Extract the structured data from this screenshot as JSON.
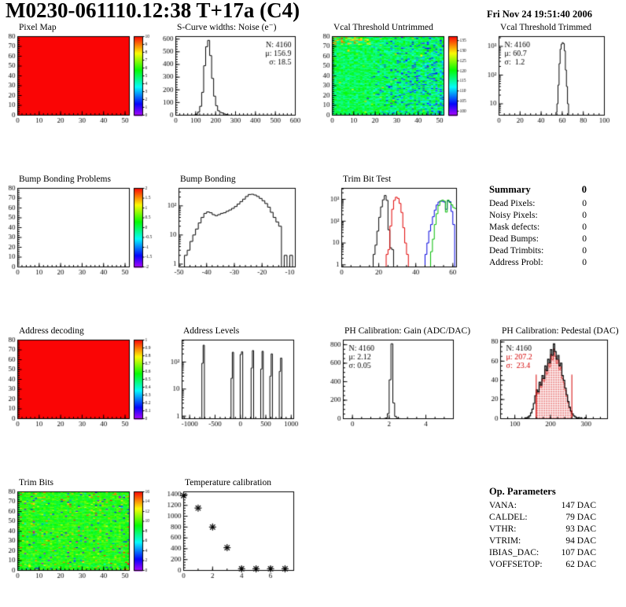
{
  "header": {
    "title": "M0230-061110.12:38 T+17a (C4)",
    "date": "Fri Nov 24 19:51:40 2006"
  },
  "summary": {
    "title": "Summary",
    "value": "0",
    "rows": [
      [
        "Dead Pixels:",
        "0"
      ],
      [
        "Noisy Pixels:",
        "0"
      ],
      [
        "Mask defects:",
        "0"
      ],
      [
        "Dead Bumps:",
        "0"
      ],
      [
        "Dead Trimbits:",
        "0"
      ],
      [
        "Address Probl:",
        "0"
      ]
    ]
  },
  "op_params": {
    "title": "Op. Parameters",
    "rows": [
      [
        "VANA:",
        "147 DAC"
      ],
      [
        "CALDEL:",
        "79 DAC"
      ],
      [
        "VTHR:",
        "93 DAC"
      ],
      [
        "VTRIM:",
        "94 DAC"
      ],
      [
        "IBIAS_DAC:",
        "107 DAC"
      ],
      [
        "VOFFSETOP:",
        "62 DAC"
      ]
    ]
  },
  "colors": {
    "hist_black": "#000000",
    "hist_red": "#e00000",
    "hist_blue": "#0000dd",
    "hist_green": "#00bb00",
    "solid_red": "#fa0e00",
    "stat_red": "#d40000"
  },
  "chart_data": [
    {
      "id": "pixel_map",
      "type": "heatmap",
      "title": "Pixel Map",
      "ml": 16,
      "fw": 142,
      "x": {
        "min": 0,
        "max": 52,
        "major": 10,
        "minor": 2
      },
      "y": {
        "min": 0,
        "max": 80,
        "major": 10,
        "minor": 2
      },
      "map": {
        "mode": "solid",
        "value": 10
      },
      "z": {
        "min": 0,
        "max": 10
      },
      "colorbar": {
        "labels": [
          0,
          1,
          2,
          3,
          4,
          5,
          6,
          7,
          8,
          9,
          10
        ]
      }
    },
    {
      "id": "scurve",
      "type": "hist",
      "title": "S-Curve widths: Noise (e⁻)",
      "ml": 20,
      "fw": 152,
      "x": {
        "min": 0,
        "max": 600,
        "major": 100,
        "minor": 20
      },
      "y": {
        "min": 0,
        "max": 620,
        "major": 100,
        "minor": 20
      },
      "bins": {
        "x0": 90,
        "dx": 10,
        "values": [
          2,
          8,
          25,
          70,
          180,
          390,
          540,
          590,
          470,
          290,
          150,
          75,
          35,
          22,
          18,
          10,
          5,
          2
        ]
      },
      "stats": {
        "pos": "tr",
        "lines": [
          {
            "t": "N: 4160",
            "c": "#000000"
          },
          {
            "t": "μ: 156.9",
            "c": "#000000"
          },
          {
            "t": "σ: 18.5",
            "c": "#000000"
          }
        ]
      }
    },
    {
      "id": "vcal_untrimmed",
      "type": "heatmap",
      "title": "Vcal Threshold Untrimmed",
      "ml": 16,
      "fw": 142,
      "x": {
        "min": 0,
        "max": 52,
        "major": 10,
        "minor": 2
      },
      "y": {
        "min": 0,
        "max": 80,
        "major": 10,
        "minor": 2
      },
      "map": {
        "mode": "noise",
        "pattern": "vcal",
        "seed": 77
      },
      "z": {
        "min": 98,
        "max": 137
      },
      "colorbar": {
        "labels": [
          100,
          105,
          110,
          115,
          120,
          125,
          130,
          135
        ]
      }
    },
    {
      "id": "vcal_trimmed",
      "type": "hist",
      "title": "Vcal Threshold Trimmed",
      "ml": 24,
      "fw": 134,
      "x": {
        "min": 0,
        "max": 100,
        "major": 20,
        "minor": 5
      },
      "y": {
        "min": 4,
        "max": 2200,
        "log": true
      },
      "bins": {
        "x0": 53,
        "dx": 1,
        "values": [
          2,
          5,
          10,
          45,
          250,
          800,
          1200,
          1350,
          1250,
          700,
          150,
          40,
          10,
          4,
          2
        ]
      },
      "stats": {
        "pos": "tl",
        "lines": [
          {
            "t": "N: 4160",
            "c": "#000000"
          },
          {
            "t": "μ: 60.7",
            "c": "#000000"
          },
          {
            "t": "σ:  1.2",
            "c": "#000000"
          }
        ]
      }
    },
    {
      "id": "bump_problems",
      "type": "heatmap",
      "title": "Bump Bonding Problems",
      "ml": 16,
      "fw": 142,
      "x": {
        "min": 0,
        "max": 52,
        "major": 10,
        "minor": 2
      },
      "y": {
        "min": 0,
        "max": 80,
        "major": 10,
        "minor": 2
      },
      "map": {
        "mode": "empty"
      },
      "z": {
        "min": -2,
        "max": 2
      },
      "colorbar": {
        "labels": [
          -2,
          -1.5,
          -1,
          -0.5,
          0,
          0.5,
          1,
          1.5,
          2
        ]
      }
    },
    {
      "id": "bump_bonding",
      "type": "hist",
      "title": "Bump Bonding",
      "ml": 24,
      "fw": 148,
      "x": {
        "min": -50,
        "max": -8,
        "major": 10,
        "minor": 2
      },
      "y": {
        "min": 0.8,
        "max": 400,
        "log": true
      },
      "bins": {
        "x0": -48,
        "dx": 1,
        "values": [
          2,
          3,
          6,
          10,
          16,
          26,
          40,
          55,
          62,
          58,
          50,
          46,
          50,
          55,
          58,
          65,
          72,
          82,
          95,
          115,
          140,
          170,
          210,
          245,
          250,
          235,
          210,
          180,
          150,
          120,
          90,
          60,
          40,
          28,
          20,
          0,
          2,
          0,
          2,
          0
        ]
      }
    },
    {
      "id": "trimbit_test",
      "type": "mhist",
      "title": "Trim Bit Test",
      "ml": 28,
      "fw": 146,
      "x": {
        "min": 0,
        "max": 62,
        "major": 20,
        "minor": 5
      },
      "y": {
        "min": 0.8,
        "max": 3200,
        "log": true
      },
      "series": [
        {
          "color": "#000000",
          "x0": 17,
          "dx": 1,
          "values": [
            3,
            8,
            35,
            150,
            450,
            950,
            1500,
            900,
            40,
            6,
            5
          ]
        },
        {
          "color": "#e00000",
          "x0": 24,
          "dx": 1,
          "values": [
            3,
            5,
            60,
            350,
            900,
            1250,
            1100,
            650,
            250,
            50,
            10,
            3
          ]
        },
        {
          "color": "#0000dd",
          "x0": 45,
          "dx": 1,
          "values": [
            3,
            10,
            35,
            70,
            160,
            320,
            550,
            750,
            850,
            800,
            750,
            350,
            850,
            780,
            280,
            70
          ]
        },
        {
          "color": "#00bb00",
          "x0": 48,
          "dx": 1,
          "values": [
            4,
            15,
            70,
            220,
            520,
            820,
            920,
            830,
            260,
            920,
            720,
            560,
            420,
            380
          ]
        }
      ]
    },
    {
      "id": "address_decoding",
      "type": "heatmap",
      "title": "Address decoding",
      "ml": 16,
      "fw": 142,
      "x": {
        "min": 0,
        "max": 52,
        "major": 10,
        "minor": 2
      },
      "y": {
        "min": 0,
        "max": 80,
        "major": 10,
        "minor": 2
      },
      "map": {
        "mode": "solid",
        "value": 1
      },
      "z": {
        "min": 0,
        "max": 1
      },
      "colorbar": {
        "labels": [
          0,
          0.1,
          0.2,
          0.3,
          0.4,
          0.5,
          0.6,
          0.7,
          0.8,
          0.9,
          1
        ]
      }
    },
    {
      "id": "address_levels",
      "type": "spikes",
      "title": "Address Levels",
      "ml": 28,
      "fw": 142,
      "x": {
        "min": -1150,
        "max": 1050,
        "major": 500,
        "minor": 100
      },
      "y": {
        "min": 0.8,
        "max": 650,
        "log": true
      },
      "bw": 25,
      "spikes": [
        {
          "x": -735,
          "side": 90,
          "main": 420
        },
        {
          "x": -160,
          "side": 25,
          "main": 230
        },
        {
          "x": 20,
          "side": 190,
          "main": 240
        },
        {
          "x": 235,
          "side": 60,
          "main": 265
        },
        {
          "x": 425,
          "side": 55,
          "main": 250
        },
        {
          "x": 605,
          "side": 30,
          "main": 200
        },
        {
          "x": 790,
          "side": 45,
          "main": 140
        }
      ]
    },
    {
      "id": "ph_gain",
      "type": "hist",
      "title": "PH Calibration: Gain (ADC/DAC)",
      "ml": 30,
      "fw": 140,
      "x": {
        "min": -0.5,
        "max": 5.5,
        "major": 2,
        "minor": 0.5
      },
      "y": {
        "min": 0,
        "max": 850,
        "major": 200,
        "minor": 50
      },
      "bins": {
        "x0": 1.7,
        "dx": 0.1,
        "values": [
          2,
          8,
          55,
          420,
          810,
          170,
          25,
          5,
          2
        ]
      },
      "stats": {
        "pos": "tl",
        "lines": [
          {
            "t": "N: 4160",
            "c": "#000000"
          },
          {
            "t": "μ: 2.12",
            "c": "#000000"
          },
          {
            "t": "σ: 0.05",
            "c": "#000000"
          }
        ]
      }
    },
    {
      "id": "ph_pedestal",
      "type": "hist_filled",
      "title": "PH Calibration: Pedestal (DAC)",
      "ml": 26,
      "fw": 136,
      "x": {
        "min": 60,
        "max": 360,
        "major": 100,
        "minor": 20
      },
      "y": {
        "min": 0,
        "max": 82,
        "major": 20,
        "minor": 5
      },
      "bins": {
        "x0": 128,
        "dx": 4,
        "values": [
          1,
          1,
          2,
          3,
          6,
          10,
          16,
          24,
          30,
          28,
          38,
          35,
          45,
          42,
          55,
          50,
          62,
          58,
          72,
          66,
          78,
          70,
          62,
          66,
          55,
          58,
          45,
          40,
          32,
          25,
          18,
          12,
          8,
          5,
          3,
          2,
          1,
          1,
          0,
          1,
          0,
          0,
          1,
          0,
          0
        ]
      },
      "fill": {
        "color": "#d40000",
        "cuts": [
          160,
          260
        ],
        "frac": 0.93,
        "cutH": 46
      },
      "stats": {
        "pos": "tl",
        "lines": [
          {
            "t": "N: 4160",
            "c": "#000000"
          },
          {
            "t": "μ: 207.2",
            "c": "#d40000"
          },
          {
            "t": "σ:  23.4",
            "c": "#d40000"
          }
        ]
      }
    },
    {
      "id": "trim_bits",
      "type": "heatmap",
      "title": "Trim Bits",
      "ml": 16,
      "fw": 142,
      "x": {
        "min": 0,
        "max": 52,
        "major": 10,
        "minor": 2
      },
      "y": {
        "min": 0,
        "max": 80,
        "major": 10,
        "minor": 2
      },
      "map": {
        "mode": "noise",
        "pattern": "trim",
        "seed": 1234
      },
      "z": {
        "min": 0,
        "max": 16
      },
      "colorbar": {
        "labels": [
          0,
          2,
          4,
          6,
          8,
          10,
          12,
          14,
          16
        ]
      }
    },
    {
      "id": "temp_cal",
      "type": "scatter",
      "title": "Temperature calibration",
      "ml": 30,
      "fw": 140,
      "x": {
        "min": 0,
        "max": 7.6,
        "major": 2,
        "minor": 1
      },
      "y": {
        "min": 0,
        "max": 1450,
        "major": 200,
        "minor": 50
      },
      "points": [
        [
          0,
          1380
        ],
        [
          1,
          1150
        ],
        [
          2,
          800
        ],
        [
          3,
          420
        ],
        [
          4,
          30
        ],
        [
          5,
          30
        ],
        [
          6,
          30
        ],
        [
          7,
          30
        ]
      ]
    }
  ]
}
